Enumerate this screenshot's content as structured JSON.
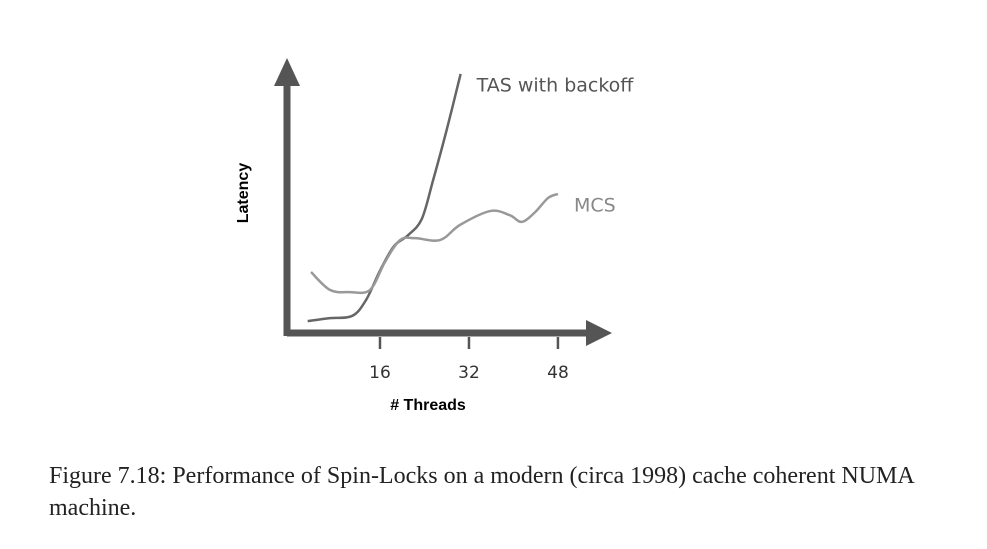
{
  "chart_data": {
    "type": "line",
    "xlabel": "# Threads",
    "ylabel": "Latency",
    "xlim": [
      0,
      57
    ],
    "xticks": [
      16,
      32,
      48
    ],
    "ylim": [
      0,
      100
    ],
    "series": [
      {
        "name": "TAS with backoff",
        "color": "#666666",
        "x": [
          3,
          7,
          11,
          13.5,
          16,
          18.5,
          21,
          23.5,
          25.5,
          28,
          30.5
        ],
        "values": [
          4.4,
          5.5,
          6.3,
          12.2,
          23,
          32,
          36,
          42,
          56,
          75,
          95.6
        ]
      },
      {
        "name": "MCS",
        "color": "#999999",
        "x": [
          3.6,
          7,
          10.6,
          14.2,
          16.9,
          19.6,
          22.3,
          26.8,
          30.4,
          35.8,
          39.3,
          41.5,
          43.9,
          46.2,
          48
        ],
        "values": [
          22.5,
          15.9,
          15.1,
          15.9,
          26.2,
          34.3,
          35,
          34.3,
          39.9,
          45,
          43.5,
          41,
          44.6,
          49.8,
          51.3
        ]
      }
    ]
  },
  "caption": "Figure 7.18: Performance of Spin-Locks on a modern (circa 1998) cache coherent NUMA machine."
}
